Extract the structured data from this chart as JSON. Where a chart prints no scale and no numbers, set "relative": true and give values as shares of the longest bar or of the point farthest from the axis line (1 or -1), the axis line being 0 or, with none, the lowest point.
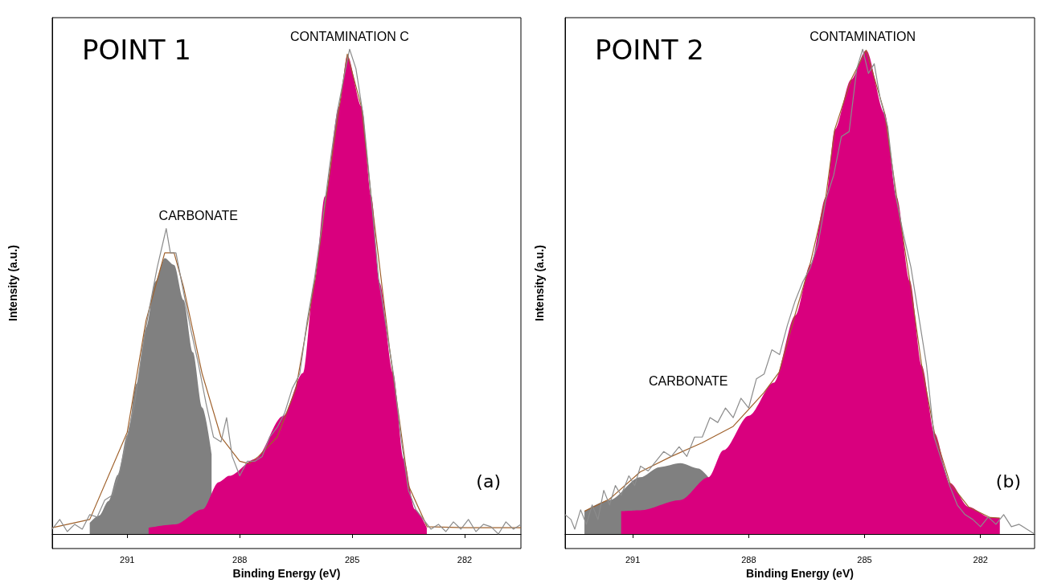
{
  "chart_data": [
    {
      "type": "area",
      "title": "POINT 1",
      "xlabel": "Binding Energy (eV)",
      "ylabel": "Intensity (a.u.)",
      "relative": true,
      "xlim": [
        293,
        280.5
      ],
      "xticks": [
        291,
        288,
        285,
        282
      ],
      "tick_labels": "x",
      "grid": false,
      "annotations": [
        {
          "text": "CARBONATE",
          "x": 289.96,
          "y": 0.63
        },
        {
          "text": "CONTAMINATION C",
          "x": 285.07,
          "y": 1
        },
        "(a)"
      ],
      "series": [
        {
          "type": "area",
          "color": "#808080",
          "x": [
            292,
            291.75,
            291.5,
            291.25,
            291,
            290.75,
            290.5,
            290.25,
            290,
            289.75,
            289.5,
            289.25,
            289,
            288.75
          ],
          "values": [
            0.023,
            0.038,
            0.068,
            0.122,
            0.204,
            0.31,
            0.425,
            0.521,
            0.569,
            0.555,
            0.483,
            0.375,
            0.261,
            0.165
          ]
        },
        {
          "type": "area",
          "color": "#d9007e",
          "x": [
            290.43,
            289.72,
            288.99,
            288.56,
            288.28,
            287.58,
            286.85,
            286.31,
            286.01,
            285.73,
            285.35,
            285.13,
            284.75,
            284.49,
            284.27,
            283.91,
            283.63,
            283.33,
            283.01
          ],
          "values": [
            0.013,
            0.02,
            0.051,
            0.107,
            0.12,
            0.155,
            0.243,
            0.332,
            0.518,
            0.696,
            0.882,
            0.987,
            0.882,
            0.696,
            0.518,
            0.332,
            0.155,
            0.051,
            0.013
          ]
        },
        {
          "type": "line",
          "color": "#a0622d",
          "x": [
            293,
            292,
            291,
            290.5,
            290,
            289.75,
            289.5,
            289,
            288.5,
            288,
            287.75,
            287.5,
            287,
            286.5,
            286,
            285.5,
            285.13,
            284.75,
            284.5,
            284,
            283.5,
            283,
            282,
            280.5
          ],
          "values": [
            0.013,
            0.03,
            0.21,
            0.44,
            0.58,
            0.58,
            0.51,
            0.33,
            0.2,
            0.15,
            0.145,
            0.16,
            0.2,
            0.3,
            0.52,
            0.8,
            0.99,
            0.88,
            0.7,
            0.38,
            0.1,
            0.015,
            0.013,
            0.013
          ]
        },
        {
          "type": "line",
          "color": "#8c8c8c",
          "x": [
            293,
            292.8,
            292.6,
            292.4,
            292.2,
            292,
            291.8,
            291.6,
            291.4,
            291.2,
            291,
            290.8,
            290.6,
            290.4,
            290.2,
            290.05,
            289.96,
            289.85,
            289.7,
            289.5,
            289.3,
            289.1,
            288.9,
            288.7,
            288.5,
            288.35,
            288.2,
            288,
            287.8,
            287.6,
            287.4,
            287.2,
            287,
            286.8,
            286.6,
            286.4,
            286.2,
            286,
            285.8,
            285.6,
            285.4,
            285.2,
            285.07,
            284.9,
            284.7,
            284.5,
            284.3,
            284.1,
            283.9,
            283.7,
            283.5,
            283.3,
            283.1,
            282.9,
            282.7,
            282.5,
            282.3,
            282.1,
            281.9,
            281.7,
            281.5,
            281.3,
            281.1,
            280.9,
            280.7,
            280.5
          ],
          "values": [
            0.01,
            0.03,
            0.005,
            0.02,
            0.01,
            0.04,
            0.035,
            0.07,
            0.08,
            0.13,
            0.2,
            0.27,
            0.38,
            0.47,
            0.55,
            0.6,
            0.63,
            0.58,
            0.58,
            0.5,
            0.42,
            0.35,
            0.27,
            0.2,
            0.19,
            0.24,
            0.16,
            0.12,
            0.15,
            0.15,
            0.16,
            0.2,
            0.22,
            0.25,
            0.3,
            0.33,
            0.44,
            0.53,
            0.64,
            0.76,
            0.87,
            0.95,
            1,
            0.96,
            0.86,
            0.7,
            0.53,
            0.43,
            0.33,
            0.2,
            0.09,
            0.05,
            0.03,
            0.01,
            0.02,
            0.005,
            0.025,
            0.01,
            0.03,
            0.005,
            0.02,
            0.015,
            0,
            0.025,
            0.01,
            0.02
          ]
        }
      ]
    },
    {
      "type": "area",
      "title": "POINT 2",
      "xlabel": "Binding Energy (eV)",
      "ylabel": "Intensity (a.u.)",
      "relative": true,
      "xlim": [
        292.75,
        280.6
      ],
      "xticks": [
        291,
        288,
        285,
        282
      ],
      "tick_labels": "x",
      "grid": false,
      "annotations": [
        "CARBONATE",
        {
          "text": "CONTAMINATION",
          "x": 285.05,
          "y": 1
        },
        "(b)"
      ],
      "series": [
        {
          "type": "area",
          "color": "#808080",
          "x": [
            292.25,
            291.6,
            290.81,
            290.3,
            289.77,
            289.3,
            289.04
          ],
          "values": [
            0.047,
            0.07,
            0.117,
            0.138,
            0.146,
            0.135,
            0.117
          ]
        },
        {
          "type": "area",
          "color": "#d9007e",
          "x": [
            291.3,
            290.81,
            289.77,
            289.04,
            288.65,
            288,
            287.35,
            286.79,
            286.4,
            286,
            285.77,
            285.35,
            284.96,
            284.48,
            284.17,
            283.83,
            283.52,
            283.19,
            282.79,
            282.31,
            281.75,
            281.5
          ],
          "values": [
            0.047,
            0.049,
            0.07,
            0.117,
            0.173,
            0.244,
            0.312,
            0.451,
            0.556,
            0.695,
            0.834,
            0.937,
            0.998,
            0.868,
            0.695,
            0.522,
            0.347,
            0.208,
            0.105,
            0.056,
            0.034,
            0.033
          ]
        },
        {
          "type": "line",
          "color": "#a0622d",
          "x": [
            292.25,
            291.6,
            290.81,
            290,
            289.21,
            288.4,
            287.6,
            287.21,
            286.79,
            286.4,
            286,
            285.77,
            285.35,
            284.96,
            284.48,
            284.17,
            283.83,
            283.52,
            283.19,
            282.79,
            282.31,
            281.75,
            281.5
          ],
          "values": [
            0.047,
            0.072,
            0.128,
            0.16,
            0.188,
            0.222,
            0.292,
            0.334,
            0.455,
            0.56,
            0.697,
            0.835,
            0.937,
            0.998,
            0.868,
            0.695,
            0.522,
            0.347,
            0.208,
            0.105,
            0.056,
            0.034,
            0.033
          ]
        },
        {
          "type": "line",
          "color": "#8c8c8c",
          "x": [
            292.75,
            292.6,
            292.5,
            292.35,
            292.2,
            292.05,
            291.9,
            291.75,
            291.6,
            291.45,
            291.3,
            291.1,
            290.95,
            290.8,
            290.6,
            290.4,
            290.2,
            290,
            289.8,
            289.6,
            289.4,
            289.2,
            289,
            288.8,
            288.6,
            288.4,
            288.2,
            288,
            287.8,
            287.6,
            287.4,
            287.2,
            287,
            286.8,
            286.6,
            286.4,
            286.2,
            286,
            285.8,
            285.6,
            285.4,
            285.2,
            285.05,
            284.9,
            284.75,
            284.6,
            284.4,
            284.2,
            284,
            283.8,
            283.6,
            283.4,
            283.2,
            283,
            282.8,
            282.6,
            282.4,
            282.2,
            282,
            281.8,
            281.6,
            281.4,
            281.2,
            281,
            280.8,
            280.6
          ],
          "values": [
            0.04,
            0.03,
            0.01,
            0.05,
            0.02,
            0.06,
            0.03,
            0.09,
            0.06,
            0.1,
            0.08,
            0.12,
            0.1,
            0.14,
            0.13,
            0.15,
            0.17,
            0.16,
            0.18,
            0.16,
            0.2,
            0.2,
            0.24,
            0.23,
            0.26,
            0.24,
            0.28,
            0.26,
            0.32,
            0.33,
            0.38,
            0.37,
            0.43,
            0.48,
            0.52,
            0.55,
            0.6,
            0.69,
            0.74,
            0.82,
            0.83,
            0.96,
            1,
            0.95,
            0.97,
            0.9,
            0.84,
            0.7,
            0.62,
            0.55,
            0.45,
            0.35,
            0.2,
            0.15,
            0.1,
            0.06,
            0.04,
            0.03,
            0.015,
            0.035,
            0.02,
            0.04,
            0.015,
            0.02,
            0.01,
            0
          ]
        }
      ]
    }
  ]
}
